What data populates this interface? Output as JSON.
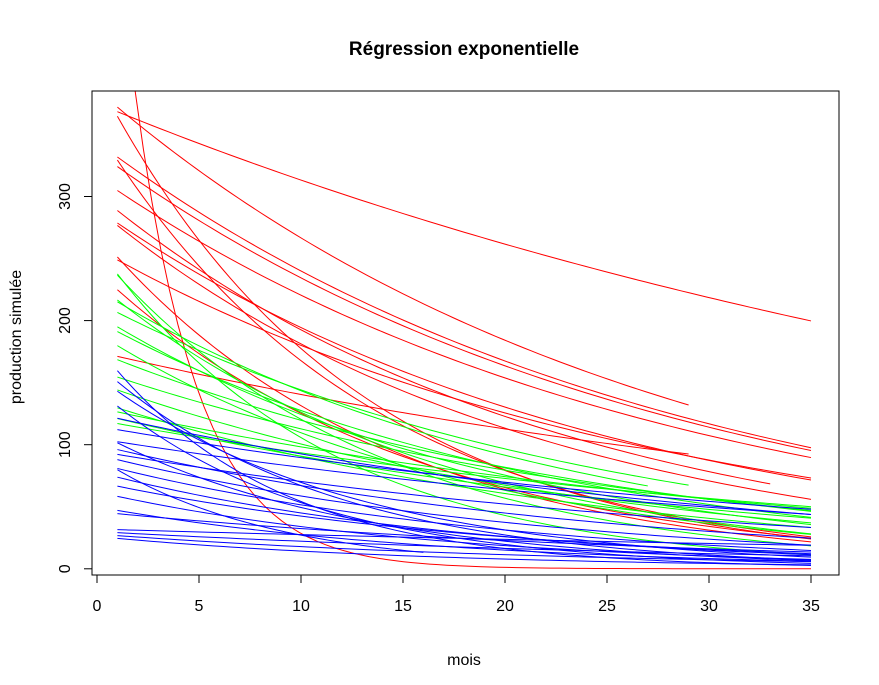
{
  "chart_data": {
    "type": "line",
    "title": "Régression exponentielle",
    "xlabel": "mois",
    "ylabel": "production simulée",
    "xlim": [
      0,
      35
    ],
    "ylim": [
      -5,
      385
    ],
    "xticks": [
      0,
      5,
      10,
      15,
      20,
      25,
      30,
      35
    ],
    "yticks": [
      0,
      100,
      200,
      300
    ],
    "grid": false,
    "legend": "none",
    "series_colors": {
      "red": "#ff0000",
      "green": "#00ff00",
      "blue": "#0000ff"
    },
    "series_model": "y = a * exp(-b * x)",
    "series": [
      {
        "color": "red",
        "a": 700,
        "b": 0.32,
        "x": [
          1,
          35
        ]
      },
      {
        "color": "red",
        "a": 375,
        "b": 0.018,
        "x": [
          1,
          35
        ]
      },
      {
        "color": "red",
        "a": 386,
        "b": 0.037,
        "x": [
          1,
          29
        ]
      },
      {
        "color": "red",
        "a": 336,
        "b": 0.036,
        "x": [
          1,
          35
        ]
      },
      {
        "color": "red",
        "a": 344,
        "b": 0.036,
        "x": [
          1,
          35
        ]
      },
      {
        "color": "red",
        "a": 316,
        "b": 0.036,
        "x": [
          1,
          35
        ]
      },
      {
        "color": "red",
        "a": 258,
        "b": 0.036,
        "x": [
          1,
          35
        ]
      },
      {
        "color": "red",
        "a": 290,
        "b": 0.04,
        "x": [
          1,
          35
        ]
      },
      {
        "color": "red",
        "a": 290,
        "b": 0.047,
        "x": [
          1,
          35
        ]
      },
      {
        "color": "red",
        "a": 302,
        "b": 0.045,
        "x": [
          1,
          33
        ]
      },
      {
        "color": "red",
        "a": 175,
        "b": 0.022,
        "x": [
          1,
          29
        ]
      },
      {
        "color": "red",
        "a": 395,
        "b": 0.08,
        "x": [
          1,
          35
        ]
      },
      {
        "color": "red",
        "a": 355,
        "b": 0.075,
        "x": [
          1,
          35
        ]
      },
      {
        "color": "red",
        "a": 270,
        "b": 0.072,
        "x": [
          1,
          35
        ]
      },
      {
        "color": "red",
        "a": 240,
        "b": 0.065,
        "x": [
          1,
          35
        ]
      },
      {
        "color": "green",
        "a": 225,
        "b": 0.045,
        "x": [
          1,
          27
        ]
      },
      {
        "color": "green",
        "a": 215,
        "b": 0.04,
        "x": [
          1,
          29
        ]
      },
      {
        "color": "green",
        "a": 200,
        "b": 0.045,
        "x": [
          1,
          35
        ]
      },
      {
        "color": "green",
        "a": 205,
        "b": 0.05,
        "x": [
          1,
          35
        ]
      },
      {
        "color": "green",
        "a": 230,
        "b": 0.06,
        "x": [
          1,
          35
        ]
      },
      {
        "color": "green",
        "a": 255,
        "b": 0.075,
        "x": [
          1,
          35
        ]
      },
      {
        "color": "green",
        "a": 175,
        "b": 0.038,
        "x": [
          1,
          35
        ]
      },
      {
        "color": "green",
        "a": 160,
        "b": 0.035,
        "x": [
          1,
          35
        ]
      },
      {
        "color": "green",
        "a": 130,
        "b": 0.028,
        "x": [
          1,
          35
        ]
      },
      {
        "color": "green",
        "a": 125,
        "b": 0.032,
        "x": [
          1,
          35
        ]
      },
      {
        "color": "green",
        "a": 120,
        "b": 0.025,
        "x": [
          1,
          35
        ]
      },
      {
        "color": "green",
        "a": 135,
        "b": 0.04,
        "x": [
          1,
          35
        ]
      },
      {
        "color": "green",
        "a": 150,
        "b": 0.04,
        "x": [
          1,
          35
        ]
      },
      {
        "color": "green",
        "a": 190,
        "b": 0.055,
        "x": [
          1,
          35
        ]
      },
      {
        "color": "green",
        "a": 260,
        "b": 0.09,
        "x": [
          1,
          35
        ]
      },
      {
        "color": "blue",
        "a": 165,
        "b": 0.09,
        "x": [
          1,
          35
        ]
      },
      {
        "color": "blue",
        "a": 155,
        "b": 0.08,
        "x": [
          1,
          35
        ]
      },
      {
        "color": "blue",
        "a": 180,
        "b": 0.12,
        "x": [
          1,
          35
        ]
      },
      {
        "color": "blue",
        "a": 145,
        "b": 0.1,
        "x": [
          1,
          35
        ]
      },
      {
        "color": "blue",
        "a": 125,
        "b": 0.03,
        "x": [
          1,
          35
        ]
      },
      {
        "color": "blue",
        "a": 115,
        "b": 0.025,
        "x": [
          1,
          35
        ]
      },
      {
        "color": "blue",
        "a": 105,
        "b": 0.025,
        "x": [
          1,
          35
        ]
      },
      {
        "color": "blue",
        "a": 95,
        "b": 0.03,
        "x": [
          1,
          35
        ]
      },
      {
        "color": "blue",
        "a": 100,
        "b": 0.04,
        "x": [
          1,
          35
        ]
      },
      {
        "color": "blue",
        "a": 92,
        "b": 0.045,
        "x": [
          1,
          35
        ]
      },
      {
        "color": "blue",
        "a": 85,
        "b": 0.05,
        "x": [
          1,
          35
        ]
      },
      {
        "color": "blue",
        "a": 78,
        "b": 0.055,
        "x": [
          1,
          35
        ]
      },
      {
        "color": "blue",
        "a": 70,
        "b": 0.05,
        "x": [
          1,
          35
        ]
      },
      {
        "color": "blue",
        "a": 62,
        "b": 0.06,
        "x": [
          1,
          35
        ]
      },
      {
        "color": "blue",
        "a": 50,
        "b": 0.06,
        "x": [
          1,
          35
        ]
      },
      {
        "color": "blue",
        "a": 46,
        "b": 0.035,
        "x": [
          1,
          35
        ]
      },
      {
        "color": "blue",
        "a": 32,
        "b": 0.015,
        "x": [
          1,
          35
        ]
      },
      {
        "color": "blue",
        "a": 30,
        "b": 0.03,
        "x": [
          1,
          35
        ]
      },
      {
        "color": "blue",
        "a": 28,
        "b": 0.045,
        "x": [
          1,
          35
        ]
      },
      {
        "color": "blue",
        "a": 26,
        "b": 0.06,
        "x": [
          1,
          35
        ]
      },
      {
        "color": "blue",
        "a": 110,
        "b": 0.08,
        "x": [
          1,
          35
        ]
      },
      {
        "color": "blue",
        "a": 90,
        "b": 0.12,
        "x": [
          1,
          16
        ]
      }
    ]
  }
}
